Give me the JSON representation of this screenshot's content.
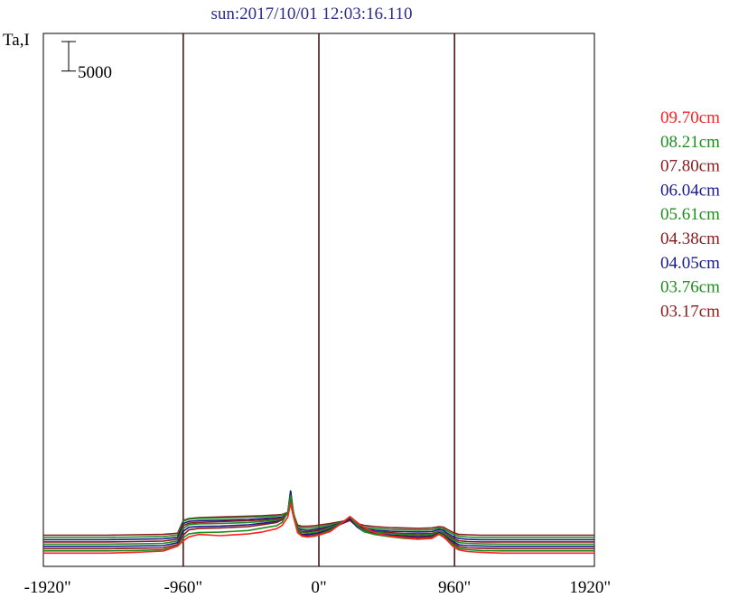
{
  "chart_data": {
    "type": "line",
    "title": "sun:2017/10/01 12:03:16.110",
    "ylabel": "Ta,I",
    "xlabel": "",
    "scale_bar": {
      "label": "5000",
      "value": 5000
    },
    "x_ticks": [
      {
        "value": -1920,
        "label": "-1920\""
      },
      {
        "value": -960,
        "label": "-960\""
      },
      {
        "value": 0,
        "label": "0\""
      },
      {
        "value": 960,
        "label": "960\""
      },
      {
        "value": 1920,
        "label": "1920\""
      }
    ],
    "xlim": [
      -1950,
      1950
    ],
    "disk_limb_lines": [
      -960,
      0,
      960
    ],
    "grid": false,
    "legend_position": "right",
    "x": [
      -1950,
      -1500,
      -1300,
      -1100,
      -1000,
      -960,
      -920,
      -850,
      -700,
      -500,
      -400,
      -300,
      -260,
      -220,
      -200,
      -180,
      -150,
      -120,
      -80,
      -30,
      0,
      80,
      150,
      220,
      270,
      320,
      400,
      500,
      600,
      700,
      800,
      850,
      880,
      900,
      950,
      990,
      1050,
      1150,
      1300,
      1500,
      1950
    ],
    "series": [
      {
        "name": "09.70cm",
        "color": "#ff2020",
        "baseline": 600,
        "values": [
          0,
          0,
          200,
          500,
          1700,
          3000,
          4000,
          4600,
          4300,
          4700,
          5200,
          6000,
          6800,
          8900,
          12200,
          9000,
          5000,
          4200,
          4000,
          4300,
          4400,
          5300,
          7100,
          9000,
          7600,
          6200,
          5000,
          4200,
          3800,
          3400,
          3600,
          4600,
          4000,
          3400,
          1600,
          800,
          400,
          200,
          0,
          0,
          0
        ]
      },
      {
        "name": "08.21cm",
        "color": "#1e8c1e",
        "baseline": 1150,
        "values": [
          0,
          0,
          100,
          300,
          1200,
          3200,
          4200,
          4500,
          4600,
          5000,
          5600,
          6200,
          7000,
          9500,
          13600,
          9500,
          4800,
          3600,
          3400,
          3600,
          3900,
          5000,
          6500,
          8400,
          6300,
          4700,
          4000,
          3500,
          3100,
          2900,
          3200,
          4200,
          3800,
          3000,
          1500,
          600,
          300,
          100,
          0,
          0,
          0
        ]
      },
      {
        "name": "07.80cm",
        "color": "#8b1a1a",
        "baseline": 1700,
        "values": [
          0,
          0,
          100,
          200,
          1000,
          3300,
          4600,
          5000,
          5100,
          5400,
          5900,
          6400,
          7100,
          9000,
          12700,
          9000,
          4400,
          3300,
          3100,
          3300,
          3500,
          4600,
          6000,
          7800,
          5700,
          4200,
          3600,
          3100,
          2900,
          2700,
          2900,
          3800,
          3400,
          2700,
          1300,
          500,
          200,
          100,
          0,
          0,
          0
        ]
      },
      {
        "name": "06.04cm",
        "color": "#1a1a8c",
        "baseline": 2250,
        "values": [
          0,
          0,
          100,
          200,
          900,
          3700,
          4700,
          4900,
          5000,
          5300,
          5700,
          6100,
          6600,
          8100,
          13600,
          8000,
          3800,
          2900,
          2900,
          3100,
          3300,
          4300,
          5400,
          6800,
          4800,
          3600,
          3200,
          2800,
          2600,
          2400,
          2600,
          3400,
          3000,
          2400,
          1200,
          400,
          200,
          100,
          0,
          0,
          0
        ]
      },
      {
        "name": "05.61cm",
        "color": "#1e8c1e",
        "baseline": 2800,
        "values": [
          0,
          0,
          100,
          200,
          800,
          3900,
          4800,
          5000,
          5100,
          5300,
          5600,
          5900,
          6300,
          7700,
          13100,
          7600,
          3600,
          2800,
          2700,
          2900,
          3100,
          4100,
          5000,
          6300,
          4400,
          3300,
          2900,
          2600,
          2400,
          2200,
          2400,
          3100,
          2800,
          2200,
          1100,
          400,
          200,
          100,
          0,
          0,
          0
        ]
      },
      {
        "name": "04.38cm",
        "color": "#8b1a1a",
        "baseline": 3350,
        "values": [
          0,
          0,
          100,
          200,
          700,
          4000,
          4600,
          4800,
          5000,
          5200,
          5400,
          5600,
          5900,
          6900,
          11400,
          6700,
          3000,
          2500,
          2500,
          2700,
          2900,
          3600,
          4300,
          5300,
          3800,
          2900,
          2500,
          2300,
          2100,
          2000,
          2100,
          2600,
          2400,
          1900,
          900,
          300,
          100,
          0,
          0,
          0,
          0
        ]
      },
      {
        "name": "04.05cm",
        "color": "#1a1a8c",
        "baseline": 3900,
        "values": [
          0,
          0,
          100,
          200,
          600,
          4000,
          4500,
          4700,
          4800,
          5000,
          5200,
          5400,
          5600,
          6400,
          11900,
          6300,
          2800,
          2400,
          2300,
          2500,
          2700,
          3300,
          4000,
          4900,
          3500,
          2700,
          2300,
          2100,
          2000,
          1900,
          2000,
          2500,
          2300,
          1800,
          800,
          300,
          100,
          0,
          0,
          0,
          0
        ]
      },
      {
        "name": "03.76cm",
        "color": "#1e8c1e",
        "baseline": 4450,
        "values": [
          0,
          0,
          100,
          200,
          600,
          4000,
          4500,
          4700,
          4800,
          5000,
          5100,
          5300,
          5500,
          6100,
          9300,
          5800,
          2700,
          2300,
          2300,
          2400,
          2600,
          3100,
          3600,
          4300,
          3100,
          2500,
          2200,
          2000,
          1900,
          1800,
          1900,
          2300,
          2100,
          1700,
          800,
          300,
          100,
          0,
          0,
          0,
          0
        ]
      },
      {
        "name": "03.17cm",
        "color": "#8b1a1a",
        "baseline": 5000,
        "values": [
          0,
          0,
          100,
          200,
          500,
          3600,
          4100,
          4300,
          4500,
          4700,
          4800,
          5000,
          5100,
          5600,
          7900,
          5300,
          2500,
          2200,
          2200,
          2300,
          2500,
          2900,
          3300,
          3800,
          2900,
          2400,
          2100,
          1900,
          1800,
          1700,
          1800,
          2100,
          2000,
          1600,
          700,
          200,
          100,
          0,
          0,
          0,
          0
        ]
      }
    ]
  }
}
